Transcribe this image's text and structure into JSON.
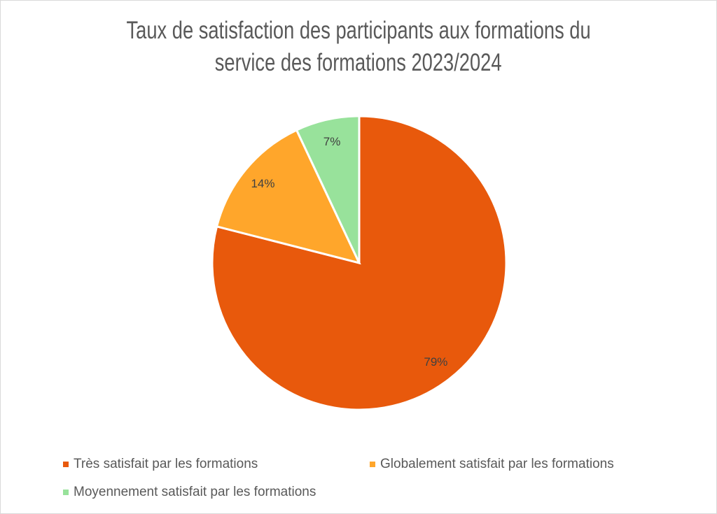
{
  "chart_data": {
    "type": "pie",
    "title_lines": [
      "Taux de satisfaction des participants aux formations du",
      "service des formations 2023/2024"
    ],
    "slices": [
      {
        "label": "Très satisfait par les formations",
        "value": 79,
        "data_label": "79%",
        "color": "#E8590C"
      },
      {
        "label": "Globalement satisfait par les formations",
        "value": 14,
        "data_label": "14%",
        "color": "#FFA62B"
      },
      {
        "label": "Moyennement satisfait par les formations",
        "value": 7,
        "data_label": "7%",
        "color": "#98E29B"
      }
    ],
    "legend_position": "bottom"
  }
}
